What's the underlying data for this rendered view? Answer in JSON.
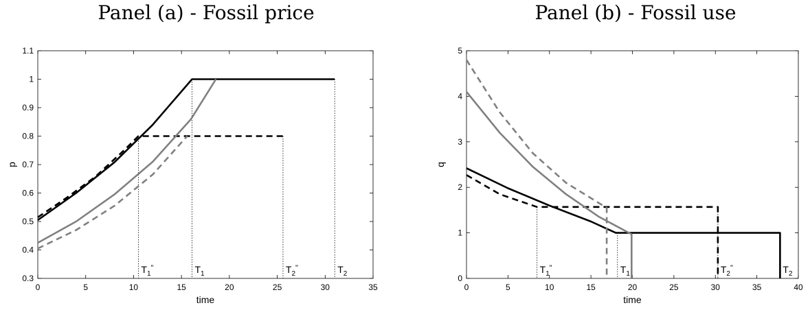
{
  "panels": [
    {
      "title": "Panel (a) - Fossil price"
    },
    {
      "title": "Panel (b) - Fossil use"
    }
  ],
  "chart_data": [
    {
      "type": "line",
      "title": "Panel (a) - Fossil price",
      "xlabel": "time",
      "ylabel": "p",
      "xlim": [
        0,
        35
      ],
      "ylim": [
        0.3,
        1.1
      ],
      "xticks": [
        0,
        5,
        10,
        15,
        20,
        25,
        30,
        35
      ],
      "yticks": [
        0.3,
        0.4,
        0.5,
        0.6,
        0.7,
        0.8,
        0.9,
        1,
        1.1
      ],
      "grid": false,
      "legend": "none",
      "series": [
        {
          "color": "#000000",
          "style": "solid",
          "x": [
            0,
            4,
            8,
            12,
            16.1,
            31
          ],
          "y": [
            0.505,
            0.6,
            0.708,
            0.84,
            1.0,
            1.0
          ]
        },
        {
          "color": "#000000",
          "style": "dashed",
          "x": [
            0,
            3,
            6,
            9,
            10.5,
            25.6
          ],
          "y": [
            0.515,
            0.583,
            0.657,
            0.75,
            0.8,
            0.8
          ]
        },
        {
          "color": "#808080",
          "style": "solid",
          "x": [
            0,
            4,
            8,
            12,
            16,
            18.6
          ],
          "y": [
            0.425,
            0.5,
            0.595,
            0.71,
            0.86,
            1.0
          ]
        },
        {
          "color": "#808080",
          "style": "dashed",
          "x": [
            0,
            4,
            8,
            12,
            15.6
          ],
          "y": [
            0.405,
            0.47,
            0.555,
            0.665,
            0.8
          ]
        }
      ],
      "markers": [
        {
          "x": 10.5,
          "y_top": 0.8,
          "label": "T",
          "sub": "1",
          "sup": "\""
        },
        {
          "x": 16.1,
          "y_top": 1.0,
          "label": "T",
          "sub": "1",
          "sup": ""
        },
        {
          "x": 25.6,
          "y_top": 0.8,
          "label": "T",
          "sub": "2",
          "sup": "\""
        },
        {
          "x": 31,
          "y_top": 1.0,
          "label": "T",
          "sub": "2",
          "sup": ""
        }
      ]
    },
    {
      "type": "line",
      "title": "Panel (b) - Fossil use",
      "xlabel": "time",
      "ylabel": "q",
      "xlim": [
        0,
        40
      ],
      "ylim": [
        0,
        5
      ],
      "xticks": [
        0,
        5,
        10,
        15,
        20,
        25,
        30,
        35,
        40
      ],
      "yticks": [
        0,
        1,
        2,
        3,
        4,
        5
      ],
      "grid": false,
      "legend": "none",
      "series": [
        {
          "color": "#000000",
          "style": "solid",
          "x": [
            0,
            5,
            10,
            15,
            18,
            20,
            37.8,
            37.8
          ],
          "y": [
            2.42,
            1.98,
            1.6,
            1.25,
            1.0,
            1.0,
            1.0,
            0
          ]
        },
        {
          "color": "#000000",
          "style": "dashed",
          "x": [
            0,
            4,
            8.5,
            30.3,
            30.3
          ],
          "y": [
            2.27,
            1.85,
            1.57,
            1.57,
            0
          ]
        },
        {
          "color": "#808080",
          "style": "solid",
          "x": [
            0,
            4,
            8,
            12,
            16,
            19.9,
            19.9
          ],
          "y": [
            4.1,
            3.2,
            2.45,
            1.85,
            1.35,
            0.97,
            0
          ]
        },
        {
          "color": "#808080",
          "style": "dashed",
          "x": [
            0,
            4,
            8,
            12,
            16.9,
            16.9
          ],
          "y": [
            4.8,
            3.65,
            2.75,
            2.1,
            1.55,
            0
          ]
        }
      ],
      "markers": [
        {
          "x": 8.5,
          "y_top": 1.57,
          "label": "T",
          "sub": "1",
          "sup": "\""
        },
        {
          "x": 18.2,
          "y_top": 1.0,
          "label": "T",
          "sub": "1",
          "sup": ""
        },
        {
          "x": 30.3,
          "y_top": 1.57,
          "label": "T",
          "sub": "2",
          "sup": "\""
        },
        {
          "x": 37.8,
          "y_top": 1.0,
          "label": "T",
          "sub": "2",
          "sup": ""
        }
      ]
    }
  ]
}
